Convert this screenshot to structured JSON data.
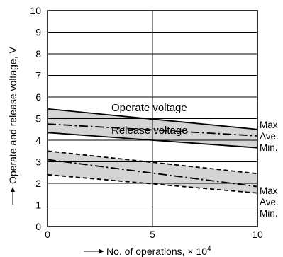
{
  "chart_data": {
    "type": "line",
    "xlabel": "No. of operations, × 10",
    "xlabel_exp": "4",
    "ylabel": "Operate and release voltage, V",
    "xlim": [
      0,
      10
    ],
    "ylim": [
      0,
      10
    ],
    "xticks": [
      "0",
      "5",
      "10"
    ],
    "yticks": [
      "0",
      "1",
      "2",
      "3",
      "4",
      "5",
      "6",
      "7",
      "8",
      "9",
      "10"
    ],
    "grid": true,
    "groups": [
      {
        "name": "Operate voltage",
        "series": [
          {
            "name": "Max",
            "style": "solid",
            "x": [
              0,
              10
            ],
            "y": [
              5.45,
              4.5
            ]
          },
          {
            "name": "Ave.",
            "style": "dashdot",
            "x": [
              0,
              10
            ],
            "y": [
              4.75,
              4.2
            ]
          },
          {
            "name": "Min.",
            "style": "solid",
            "x": [
              0,
              10
            ],
            "y": [
              4.35,
              3.65
            ]
          }
        ],
        "band_color": "#d4d4d4"
      },
      {
        "name": "Release voltage",
        "series": [
          {
            "name": "Max",
            "style": "dashed",
            "x": [
              0,
              10
            ],
            "y": [
              3.5,
              2.45
            ]
          },
          {
            "name": "Ave.",
            "style": "dashdot",
            "x": [
              0,
              10
            ],
            "y": [
              3.1,
              1.85
            ]
          },
          {
            "name": "Min.",
            "style": "dashed",
            "x": [
              0,
              10
            ],
            "y": [
              2.4,
              1.55
            ]
          }
        ],
        "band_color": "#d4d4d4"
      }
    ]
  }
}
